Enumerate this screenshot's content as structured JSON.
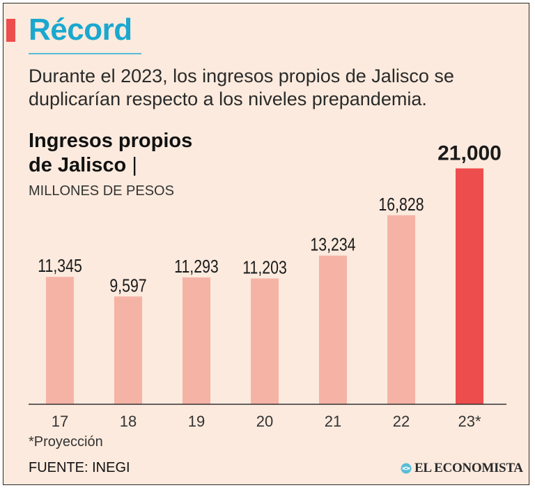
{
  "header": {
    "title": "Récord",
    "subtitle": "Durante el 2023, los ingresos propios de Jalisco se duplicarían respecto a los niveles prepandemia."
  },
  "chart_data": {
    "type": "bar",
    "title_line1": "Ingresos propios",
    "title_line2": "de Jalisco",
    "title_separator": "|",
    "units": "MILLONES DE PESOS",
    "categories": [
      "17",
      "18",
      "19",
      "20",
      "21",
      "22",
      "23*"
    ],
    "values": [
      11345,
      9597,
      11293,
      11203,
      13234,
      16828,
      21000
    ],
    "value_labels": [
      "11,345",
      "9,597",
      "11,293",
      "11,203",
      "13,234",
      "16,828",
      "21,000"
    ],
    "highlight_index": 6,
    "ylim": [
      0,
      24200
    ],
    "colors": {
      "bar": "#f5b3a6",
      "highlight": "#ee4d4d",
      "axis": "#333333"
    }
  },
  "footer": {
    "footnote": "*Proyección",
    "source": "FUENTE: INEGI",
    "brand": "EL ECONOMISTA",
    "brand_icon": "el-economista-logo-icon"
  }
}
